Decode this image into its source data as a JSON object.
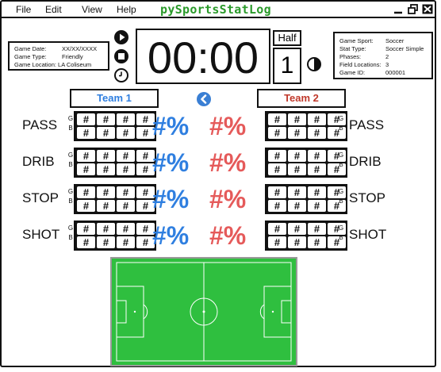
{
  "menu": {
    "file": "File",
    "edit": "Edit",
    "view": "View",
    "help": "Help"
  },
  "app_title": "pySportsStatLog",
  "game_info": {
    "date_label": "Game Date:",
    "date_value": "XX/XX/XXXX",
    "type_label": "Game Type:",
    "type_value": "Friendly",
    "location_label": "Game Location:",
    "location_value": "LA Coliseum"
  },
  "sport_info": {
    "sport_label": "Game Sport:",
    "sport_value": "Soccer",
    "stat_label": "Stat Type:",
    "stat_value": "Soccer Simple",
    "phases_label": "Phases:",
    "phases_value": "2",
    "fields_label": "Field Locations:",
    "fields_value": "3",
    "id_label": "Game ID:",
    "id_value": "000001"
  },
  "clock": "00:00",
  "period_label": "Half",
  "period_value": "1",
  "teams": {
    "team1": "Team 1",
    "team2": "Team 2"
  },
  "colors": {
    "team1": "#2f7fe0",
    "team2": "#e55a5a",
    "title": "#2a9a2a",
    "field": "#2fbf3f"
  },
  "g_label": "G",
  "b_label": "B",
  "cell_text": "#",
  "pct_text": "#%",
  "stats": [
    {
      "left_label": "PASS",
      "right_label": "PASS"
    },
    {
      "left_label": "DRIB",
      "right_label": "DRIB"
    },
    {
      "left_label": "STOP",
      "right_label": "STOP"
    },
    {
      "left_label": "SHOT",
      "right_label": "SHOT"
    }
  ],
  "icons": {
    "play": "play-icon",
    "stop": "stop-icon",
    "timer": "timer-icon",
    "half": "half-circle-icon",
    "back": "chevron-left-icon"
  }
}
